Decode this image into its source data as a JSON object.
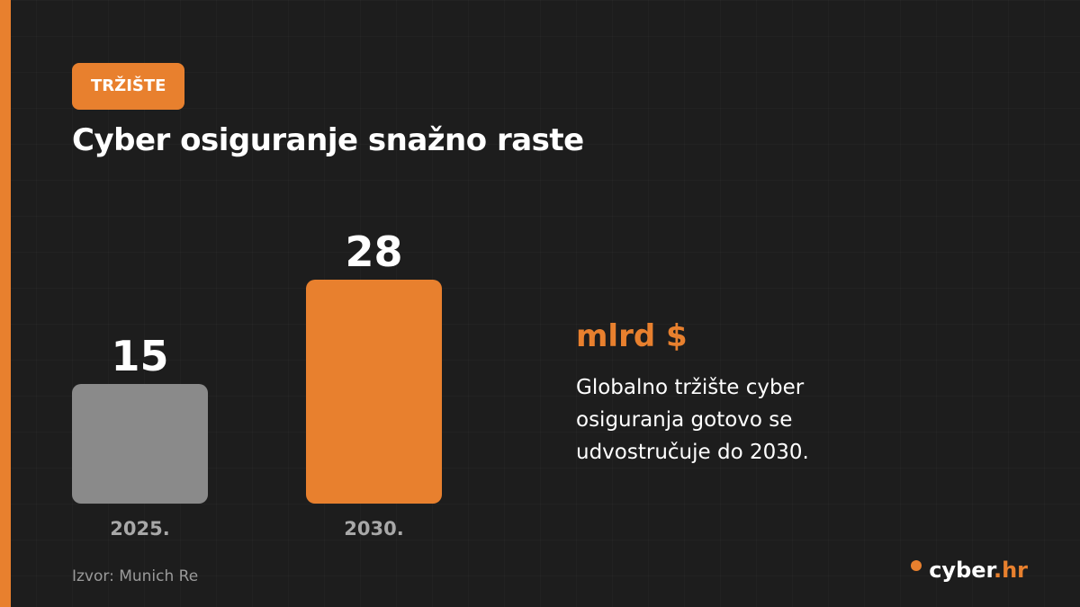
{
  "tag": "TRŽIŠTE",
  "chart_data": {
    "type": "bar",
    "title": "Cyber osiguranje snažno raste",
    "categories": [
      "2025.",
      "2030."
    ],
    "values": [
      15,
      28
    ],
    "colors": [
      "#8a8a8a",
      "#e8802e"
    ],
    "unit": "mlrd $",
    "description": "Globalno tržište cyber osiguranja gotovo se udvostručuje do 2030.",
    "source": "Izvor: Munich Re"
  },
  "logo": {
    "name": "cyber",
    "suffix": ".hr"
  }
}
